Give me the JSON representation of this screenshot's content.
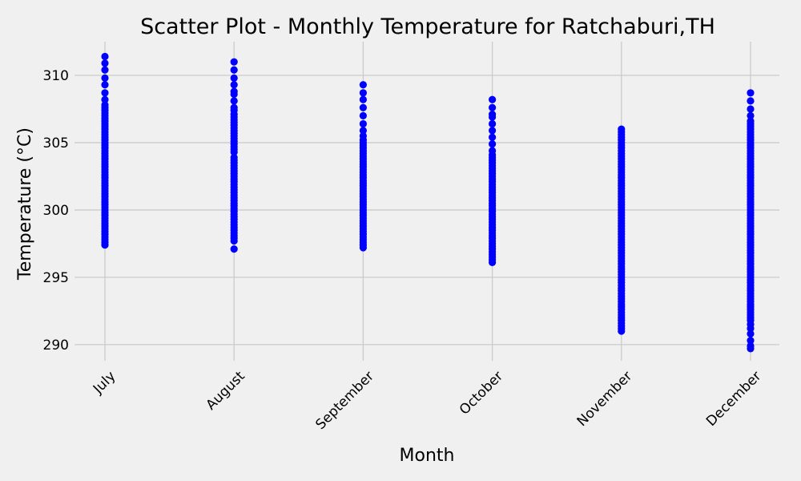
{
  "chart_data": {
    "type": "scatter",
    "title": "Scatter Plot - Monthly Temperature for Ratchaburi,TH",
    "xlabel": "Month",
    "ylabel": "Temperature (°C)",
    "categories": [
      "July",
      "August",
      "September",
      "October",
      "November",
      "December"
    ],
    "yticks": [
      290,
      295,
      300,
      305,
      310
    ],
    "ylim": [
      288.8,
      312.5
    ],
    "grid": true,
    "marker_color": "#0000ff",
    "series": [
      {
        "values": [
          [
            297.4,
            297.6,
            297.8,
            298.0,
            298.2,
            298.4,
            298.6,
            298.8,
            299.0,
            299.2,
            299.4,
            299.6,
            299.8,
            300.0,
            300.2,
            300.4,
            300.6,
            300.8,
            301.0,
            301.2,
            301.4,
            301.6,
            301.8,
            302.0,
            302.2,
            302.4,
            302.6,
            302.8,
            303.0,
            303.2,
            303.4,
            303.6,
            303.8,
            304.0,
            304.2,
            304.4,
            304.6,
            304.8,
            305.0,
            305.2,
            305.4,
            305.6,
            305.8,
            306.0,
            306.2,
            306.4,
            306.6,
            306.8,
            307.0,
            307.2,
            307.4,
            307.6,
            307.8,
            308.2,
            308.7,
            309.3,
            309.8,
            310.4,
            310.9,
            311.4
          ],
          [
            297.1,
            297.7,
            297.9,
            298.1,
            298.3,
            298.5,
            298.7,
            298.9,
            299.1,
            299.3,
            299.5,
            299.7,
            299.9,
            300.1,
            300.3,
            300.5,
            300.7,
            300.9,
            301.1,
            301.3,
            301.5,
            301.7,
            301.9,
            302.1,
            302.3,
            302.5,
            302.7,
            302.9,
            303.1,
            303.3,
            303.5,
            303.7,
            303.9,
            304.3,
            304.5,
            304.7,
            304.9,
            305.1,
            305.3,
            305.5,
            305.7,
            305.9,
            306.1,
            306.3,
            306.5,
            306.7,
            306.9,
            307.1,
            307.4,
            307.6,
            308.1,
            308.6,
            308.8,
            309.3,
            309.8,
            310.4,
            311.0
          ],
          [
            297.2,
            297.4,
            297.6,
            297.8,
            298.0,
            298.2,
            298.4,
            298.6,
            298.8,
            299.0,
            299.2,
            299.4,
            299.6,
            299.8,
            300.0,
            300.2,
            300.4,
            300.6,
            300.8,
            301.0,
            301.2,
            301.4,
            301.6,
            301.8,
            302.0,
            302.2,
            302.4,
            302.6,
            302.8,
            303.0,
            303.2,
            303.4,
            303.6,
            303.8,
            304.0,
            304.2,
            304.4,
            304.6,
            304.8,
            305.0,
            305.2,
            305.5,
            305.9,
            306.4,
            307.0,
            307.6,
            308.2,
            308.7,
            309.3
          ],
          [
            296.1,
            296.3,
            296.5,
            296.7,
            296.9,
            297.1,
            297.3,
            297.5,
            297.7,
            297.9,
            298.1,
            298.3,
            298.5,
            298.7,
            298.9,
            299.1,
            299.3,
            299.5,
            299.7,
            299.9,
            300.1,
            300.3,
            300.5,
            300.7,
            300.9,
            301.1,
            301.3,
            301.5,
            301.7,
            301.9,
            302.1,
            302.3,
            302.5,
            302.7,
            302.9,
            303.1,
            303.3,
            303.5,
            303.7,
            303.9,
            304.1,
            304.4,
            304.9,
            305.4,
            305.9,
            306.4,
            306.9,
            307.1,
            307.6,
            308.2
          ],
          [
            291.0,
            291.2,
            291.4,
            291.6,
            291.8,
            292.0,
            292.2,
            292.4,
            292.6,
            292.8,
            293.0,
            293.2,
            293.4,
            293.6,
            293.8,
            294.0,
            294.2,
            294.4,
            294.6,
            294.8,
            295.0,
            295.2,
            295.4,
            295.6,
            295.8,
            296.0,
            296.2,
            296.4,
            296.6,
            296.8,
            297.0,
            297.2,
            297.4,
            297.6,
            297.8,
            298.0,
            298.2,
            298.4,
            298.6,
            298.8,
            299.0,
            299.2,
            299.4,
            299.6,
            299.8,
            300.0,
            300.2,
            300.4,
            300.6,
            300.8,
            301.0,
            301.2,
            301.4,
            301.6,
            301.8,
            302.0,
            302.2,
            302.4,
            302.6,
            302.8,
            303.0,
            303.2,
            303.4,
            303.6,
            303.8,
            304.0,
            304.2,
            304.4,
            304.6,
            304.8,
            305.0,
            305.2,
            305.4,
            305.6,
            305.8,
            306.0
          ],
          [
            289.7,
            289.9,
            290.3,
            290.8,
            291.2,
            291.5,
            291.8,
            292.0,
            292.2,
            292.4,
            292.6,
            292.8,
            293.0,
            293.2,
            293.4,
            293.6,
            293.8,
            294.0,
            294.2,
            294.4,
            294.6,
            294.8,
            295.0,
            295.2,
            295.4,
            295.6,
            295.8,
            296.0,
            296.2,
            296.4,
            296.6,
            296.8,
            297.0,
            297.2,
            297.4,
            297.6,
            297.8,
            298.0,
            298.2,
            298.4,
            298.6,
            298.8,
            299.0,
            299.2,
            299.4,
            299.6,
            299.8,
            300.0,
            300.2,
            300.4,
            300.6,
            300.8,
            301.0,
            301.2,
            301.4,
            301.6,
            301.8,
            302.0,
            302.2,
            302.4,
            302.6,
            302.8,
            303.0,
            303.2,
            303.4,
            303.6,
            303.8,
            304.0,
            304.2,
            304.4,
            304.6,
            304.8,
            305.0,
            305.2,
            305.4,
            305.6,
            305.8,
            306.0,
            306.2,
            306.4,
            306.6,
            307.0,
            307.5,
            308.1,
            308.7
          ]
        ]
      }
    ]
  }
}
